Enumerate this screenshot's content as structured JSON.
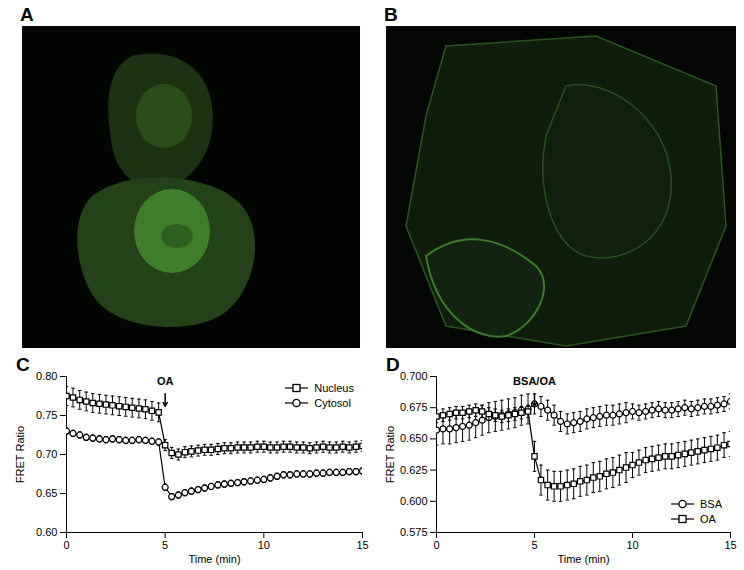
{
  "figure": {
    "panel_labels": [
      "A",
      "B",
      "C",
      "D"
    ]
  },
  "chart_data": [
    {
      "type": "line",
      "x_label": "Time (min)",
      "y_label": "FRET Ratio",
      "xlim": [
        0,
        15
      ],
      "xticks": [
        0,
        5,
        10,
        15
      ],
      "ylim": [
        0.6,
        0.8
      ],
      "yticks": [
        {
          "value": 0.6,
          "label": "0.60"
        },
        0.65,
        {
          "value": 0.7,
          "label": "0.70"
        },
        0.75,
        {
          "value": 0.8,
          "label": "0.80"
        }
      ],
      "grid": false,
      "legend": "upper right",
      "annotations": [
        {
          "text": "OA",
          "x": 5
        }
      ],
      "x": [
        0,
        0.33,
        0.67,
        1,
        1.33,
        1.67,
        2,
        2.33,
        2.67,
        3,
        3.33,
        3.67,
        4,
        4.33,
        4.67,
        5,
        5.33,
        5.67,
        6,
        6.33,
        6.67,
        7,
        7.33,
        7.67,
        8,
        8.33,
        8.67,
        9,
        9.33,
        9.67,
        10,
        10.33,
        10.67,
        11,
        11.33,
        11.67,
        12,
        12.33,
        12.67,
        13,
        13.33,
        13.67,
        14,
        14.33,
        14.67,
        15
      ],
      "series": [
        {
          "name": "Nucleus",
          "color": "#000000",
          "marker": "square",
          "line_style": "solid",
          "values": [
            0.775,
            0.773,
            0.77,
            0.768,
            0.766,
            0.765,
            0.764,
            0.763,
            0.762,
            0.761,
            0.76,
            0.759,
            0.758,
            0.756,
            0.754,
            0.712,
            0.702,
            0.7,
            0.703,
            0.704,
            0.705,
            0.706,
            0.706,
            0.707,
            0.708,
            0.708,
            0.709,
            0.709,
            0.709,
            0.71,
            0.71,
            0.709,
            0.709,
            0.71,
            0.71,
            0.709,
            0.709,
            0.708,
            0.709,
            0.71,
            0.709,
            0.709,
            0.71,
            0.709,
            0.71,
            0.711
          ],
          "errors": [
            0.012,
            0.012,
            0.012,
            0.012,
            0.012,
            0.012,
            0.012,
            0.012,
            0.012,
            0.012,
            0.012,
            0.012,
            0.012,
            0.012,
            0.012,
            0.007,
            0.007,
            0.007,
            0.007,
            0.007,
            0.007,
            0.007,
            0.007,
            0.007,
            0.007,
            0.007,
            0.007,
            0.007,
            0.007,
            0.007,
            0.007,
            0.007,
            0.007,
            0.007,
            0.007,
            0.007,
            0.007,
            0.007,
            0.007,
            0.007,
            0.007,
            0.007,
            0.007,
            0.007,
            0.007,
            0.007
          ]
        },
        {
          "name": "Cytosol",
          "color": "#000000",
          "marker": "circle",
          "line_style": "solid",
          "values": [
            0.73,
            0.727,
            0.725,
            0.722,
            0.721,
            0.72,
            0.719,
            0.72,
            0.719,
            0.718,
            0.718,
            0.719,
            0.718,
            0.717,
            0.716,
            0.658,
            0.646,
            0.648,
            0.651,
            0.653,
            0.655,
            0.657,
            0.659,
            0.661,
            0.662,
            0.663,
            0.664,
            0.665,
            0.666,
            0.667,
            0.668,
            0.67,
            0.672,
            0.674,
            0.674,
            0.675,
            0.675,
            0.675,
            0.676,
            0.676,
            0.677,
            0.677,
            0.677,
            0.678,
            0.678,
            0.679
          ],
          "errors": [
            0.004,
            0.004,
            0.004,
            0.004,
            0.004,
            0.004,
            0.004,
            0.004,
            0.004,
            0.004,
            0.004,
            0.004,
            0.004,
            0.004,
            0.004,
            0.004,
            0.004,
            0.004,
            0.004,
            0.004,
            0.004,
            0.004,
            0.004,
            0.004,
            0.004,
            0.004,
            0.004,
            0.004,
            0.004,
            0.004,
            0.004,
            0.004,
            0.004,
            0.004,
            0.004,
            0.004,
            0.004,
            0.004,
            0.004,
            0.004,
            0.004,
            0.004,
            0.004,
            0.004,
            0.004,
            0.004
          ]
        }
      ]
    },
    {
      "type": "line",
      "x_label": "Time (min)",
      "y_label": "FRET Ratio",
      "xlim": [
        0,
        15
      ],
      "xticks": [
        0,
        5,
        10,
        15
      ],
      "ylim": [
        0.575,
        0.7
      ],
      "yticks": [
        0.575,
        {
          "value": 0.6,
          "label": "0.600"
        },
        0.625,
        {
          "value": 0.65,
          "label": "0.650"
        },
        0.675,
        {
          "value": 0.7,
          "label": "0.700"
        }
      ],
      "grid": false,
      "legend": "lower right",
      "annotations": [
        {
          "text": "BSA/OA",
          "x": 5
        }
      ],
      "x": [
        0,
        0.33,
        0.67,
        1,
        1.33,
        1.67,
        2,
        2.33,
        2.67,
        3,
        3.33,
        3.67,
        4,
        4.33,
        4.67,
        5,
        5.33,
        5.67,
        6,
        6.33,
        6.67,
        7,
        7.33,
        7.67,
        8,
        8.33,
        8.67,
        9,
        9.33,
        9.67,
        10,
        10.33,
        10.67,
        11,
        11.33,
        11.67,
        12,
        12.33,
        12.67,
        13,
        13.33,
        13.67,
        14,
        14.33,
        14.67,
        15
      ],
      "series": [
        {
          "name": "BSA",
          "color": "#000000",
          "marker": "circle",
          "line_style": "solid",
          "values": [
            0.657,
            0.658,
            0.658,
            0.659,
            0.66,
            0.661,
            0.663,
            0.665,
            0.667,
            0.668,
            0.669,
            0.67,
            0.671,
            0.673,
            0.674,
            0.678,
            0.676,
            0.673,
            0.669,
            0.664,
            0.662,
            0.663,
            0.664,
            0.666,
            0.667,
            0.668,
            0.669,
            0.669,
            0.67,
            0.671,
            0.672,
            0.671,
            0.672,
            0.673,
            0.674,
            0.673,
            0.673,
            0.674,
            0.675,
            0.674,
            0.675,
            0.676,
            0.676,
            0.677,
            0.678,
            0.68
          ],
          "errors": [
            0.012,
            0.012,
            0.012,
            0.012,
            0.012,
            0.012,
            0.012,
            0.012,
            0.012,
            0.012,
            0.012,
            0.012,
            0.012,
            0.012,
            0.012,
            0.008,
            0.008,
            0.008,
            0.008,
            0.008,
            0.008,
            0.008,
            0.008,
            0.008,
            0.008,
            0.008,
            0.008,
            0.008,
            0.008,
            0.008,
            0.006,
            0.006,
            0.006,
            0.006,
            0.006,
            0.006,
            0.006,
            0.006,
            0.006,
            0.006,
            0.006,
            0.006,
            0.006,
            0.006,
            0.006,
            0.006
          ]
        },
        {
          "name": "OA",
          "color": "#000000",
          "marker": "square",
          "line_style": "solid",
          "values": [
            0.668,
            0.669,
            0.67,
            0.671,
            0.671,
            0.672,
            0.673,
            0.672,
            0.67,
            0.669,
            0.668,
            0.669,
            0.67,
            0.671,
            0.672,
            0.636,
            0.617,
            0.613,
            0.612,
            0.612,
            0.613,
            0.614,
            0.616,
            0.617,
            0.619,
            0.62,
            0.622,
            0.623,
            0.625,
            0.627,
            0.629,
            0.631,
            0.633,
            0.634,
            0.635,
            0.636,
            0.636,
            0.637,
            0.638,
            0.639,
            0.64,
            0.641,
            0.642,
            0.643,
            0.645,
            0.646
          ],
          "errors": [
            0.005,
            0.005,
            0.005,
            0.005,
            0.005,
            0.005,
            0.005,
            0.005,
            0.005,
            0.005,
            0.005,
            0.005,
            0.005,
            0.005,
            0.005,
            0.012,
            0.012,
            0.012,
            0.012,
            0.012,
            0.012,
            0.012,
            0.012,
            0.012,
            0.012,
            0.012,
            0.012,
            0.012,
            0.012,
            0.012,
            0.01,
            0.01,
            0.01,
            0.01,
            0.01,
            0.01,
            0.01,
            0.01,
            0.01,
            0.01,
            0.01,
            0.01,
            0.01,
            0.01,
            0.01,
            0.01
          ]
        }
      ]
    }
  ]
}
